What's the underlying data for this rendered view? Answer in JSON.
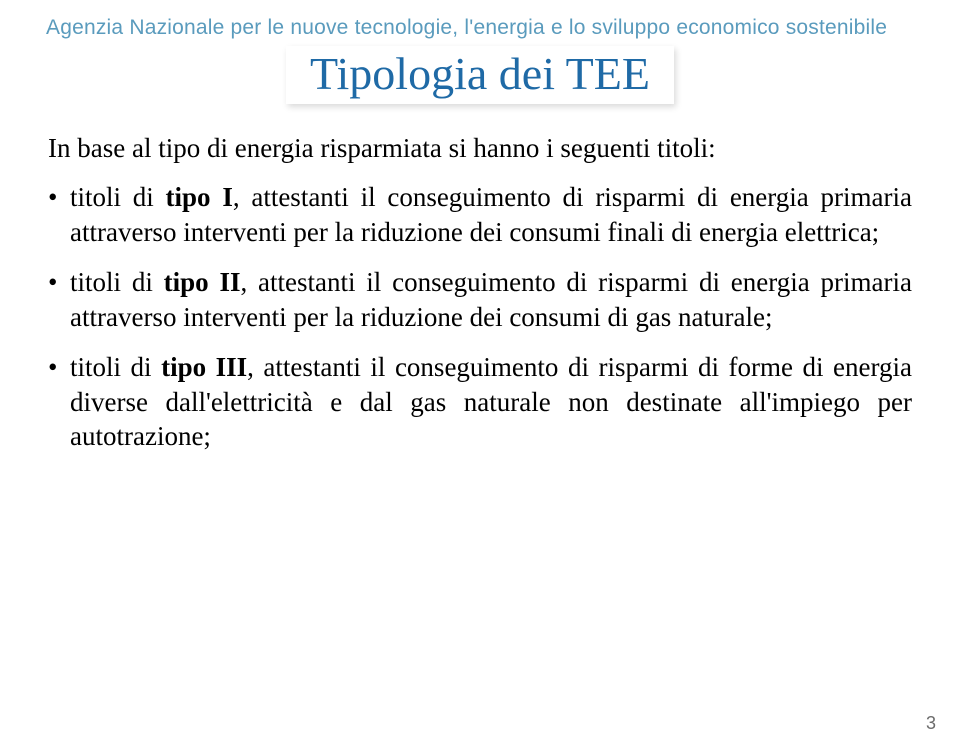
{
  "colors": {
    "header_text": "#5a9bbd",
    "title_text": "#1f6aa6",
    "body_text": "#000000",
    "page_num": "#6b6b6b",
    "background": "#ffffff"
  },
  "fonts": {
    "header_family": "Gill Sans",
    "body_family": "Times New Roman",
    "header_size_pt": 16,
    "title_size_pt": 34,
    "body_size_pt": 20
  },
  "header": "Agenzia Nazionale per le nuove tecnologie, l'energia e lo sviluppo economico sostenibile",
  "title": "Tipologia dei TEE",
  "intro": "In base al tipo di energia risparmiata si hanno i seguenti titoli:",
  "bullets": [
    {
      "prefix": "titoli di ",
      "bold": "tipo I",
      "rest": ", attestanti il conseguimento di risparmi di energia primaria attraverso interventi per la riduzione dei consumi finali di energia elettrica;"
    },
    {
      "prefix": "titoli di ",
      "bold": "tipo II",
      "rest": ", attestanti il conseguimento di risparmi di energia primaria attraverso interventi per la riduzione dei consumi di gas naturale;"
    },
    {
      "prefix": "titoli di ",
      "bold": "tipo III",
      "rest": ", attestanti il conseguimento di risparmi di forme di energia diverse dall'elettricità e dal gas naturale non destinate all'impiego per autotrazione;"
    }
  ],
  "page_number": "3"
}
